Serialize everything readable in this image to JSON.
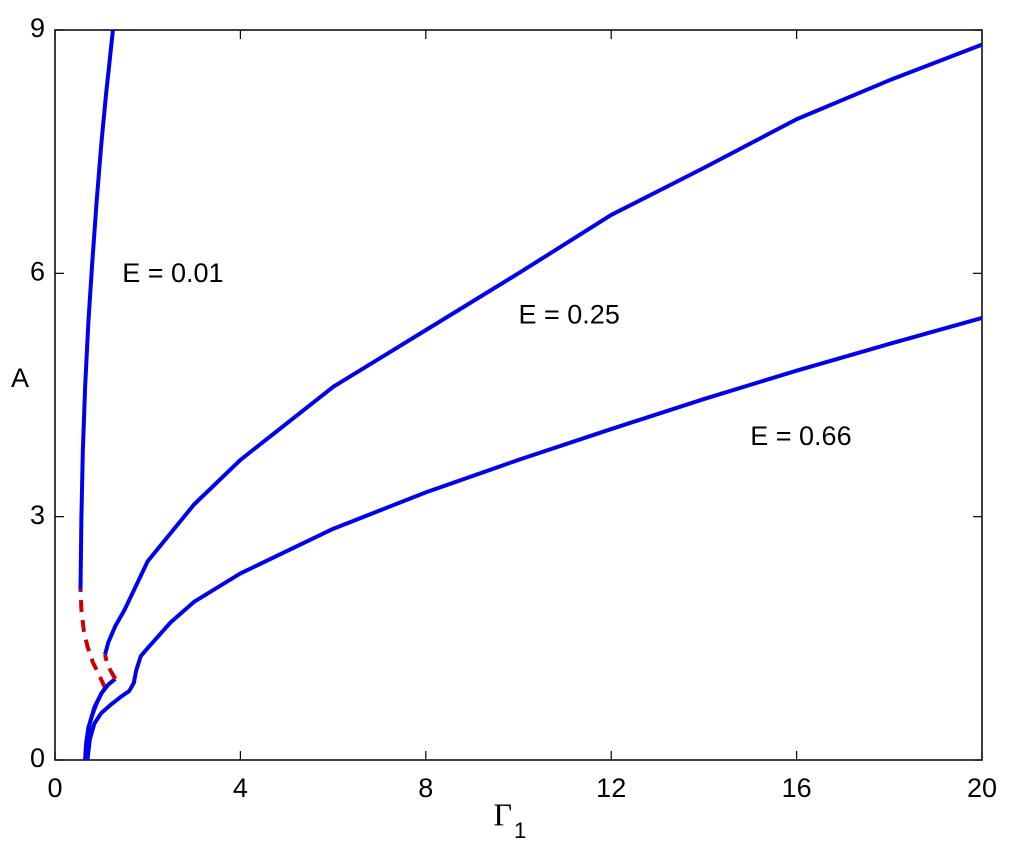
{
  "chart_data": {
    "type": "line",
    "xlabel": {
      "text": "Γ",
      "subscript": "1"
    },
    "ylabel": "A",
    "xlim": [
      0,
      20
    ],
    "ylim": [
      0,
      9
    ],
    "xticks": [
      0,
      4,
      8,
      12,
      16,
      20
    ],
    "yticks": [
      0,
      3,
      6,
      9
    ],
    "series": [
      {
        "color": "#0000ee",
        "style": "solid",
        "x": [
          0.65,
          0.67,
          0.72,
          0.8,
          0.9,
          1.0,
          1.08
        ],
        "values": [
          0,
          0.2,
          0.4,
          0.55,
          0.7,
          0.82,
          0.89
        ]
      },
      {
        "color": "#cc0000",
        "style": "dashed",
        "x": [
          1.08,
          0.95,
          0.82,
          0.7,
          0.62,
          0.57,
          0.55
        ],
        "values": [
          0.89,
          1.05,
          1.2,
          1.4,
          1.6,
          1.85,
          2.1
        ]
      },
      {
        "color": "#0000ee",
        "style": "solid",
        "x": [
          0.55,
          0.57,
          0.6,
          0.65,
          0.72,
          0.8,
          0.9,
          1.0,
          1.1,
          1.25
        ],
        "values": [
          2.1,
          3,
          3.8,
          4.6,
          5.4,
          6.1,
          6.9,
          7.6,
          8.2,
          9
        ]
      },
      {
        "color": "#0000ee",
        "style": "solid",
        "x": [
          0.65,
          0.68,
          0.75,
          0.85,
          1.0,
          1.15,
          1.3
        ],
        "values": [
          0,
          0.2,
          0.45,
          0.65,
          0.82,
          0.93,
          1.0
        ]
      },
      {
        "color": "#cc0000",
        "style": "dashed",
        "x": [
          1.3,
          1.2,
          1.12,
          1.08
        ],
        "values": [
          1.0,
          1.1,
          1.2,
          1.3
        ]
      },
      {
        "color": "#0000ee",
        "style": "solid",
        "x": [
          1.08,
          1.15,
          1.3,
          1.5,
          2,
          3,
          4,
          6,
          8,
          10,
          12,
          14,
          16,
          18,
          20
        ],
        "values": [
          1.3,
          1.45,
          1.65,
          1.85,
          2.45,
          3.15,
          3.7,
          4.6,
          5.3,
          6.0,
          6.72,
          7.3,
          7.9,
          8.38,
          8.82
        ]
      },
      {
        "color": "#0000ee",
        "style": "solid",
        "x": [
          0.7,
          0.75,
          0.85,
          1.0,
          1.2,
          1.4,
          1.6,
          1.7,
          1.75,
          1.85,
          2.0,
          2.5,
          3,
          4,
          6,
          8,
          10,
          12,
          14,
          16,
          18,
          20
        ],
        "values": [
          0,
          0.25,
          0.45,
          0.58,
          0.68,
          0.77,
          0.85,
          0.95,
          1.1,
          1.28,
          1.38,
          1.7,
          1.95,
          2.3,
          2.85,
          3.3,
          3.7,
          4.08,
          4.45,
          4.8,
          5.13,
          5.45
        ]
      }
    ],
    "annotations": [
      {
        "text": "E = 0.01",
        "x": 1.45,
        "y": 5.98
      },
      {
        "text": "E = 0.25",
        "x": 10.0,
        "y": 5.47
      },
      {
        "text": "E = 0.66",
        "x": 15.0,
        "y": 3.97
      }
    ]
  }
}
